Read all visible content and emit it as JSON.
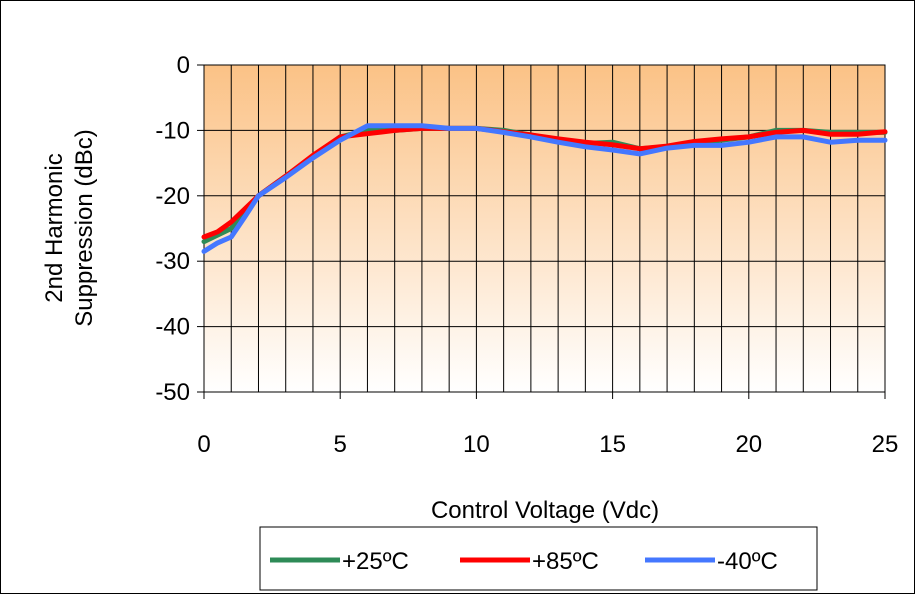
{
  "chart_data": {
    "type": "line",
    "title": "",
    "xlabel": "Control Voltage (Vdc)",
    "ylabel_line1": "2nd Harmonic",
    "ylabel_line2": "Suppression (dBc)",
    "xlim": [
      0,
      25
    ],
    "ylim": [
      -50,
      0
    ],
    "xticks": [
      0,
      5,
      10,
      15,
      20,
      25
    ],
    "yticks": [
      0,
      -10,
      -20,
      -30,
      -40,
      -50
    ],
    "xtick_labels": [
      "0",
      "5",
      "10",
      "15",
      "20",
      "25"
    ],
    "ytick_labels": [
      "0",
      "-10",
      "-20",
      "-30",
      "-40",
      "-50"
    ],
    "grid": "vertical lines every 1 unit, horizontal lines every 10 units",
    "legend_position": "bottom",
    "background": "orange-to-white vertical gradient",
    "series": [
      {
        "name": "+25ºC",
        "color": "#2e8b57",
        "points": [
          [
            0,
            -27
          ],
          [
            1,
            -25
          ],
          [
            2,
            -20
          ],
          [
            3,
            -17
          ],
          [
            4,
            -14
          ],
          [
            5,
            -11
          ],
          [
            6,
            -10
          ],
          [
            7,
            -10
          ],
          [
            8,
            -9.7
          ],
          [
            9,
            -9.7
          ],
          [
            10,
            -9.7
          ],
          [
            11,
            -10
          ],
          [
            12,
            -10.7
          ],
          [
            13,
            -11.5
          ],
          [
            14,
            -12
          ],
          [
            15,
            -11.8
          ],
          [
            16,
            -12.8
          ],
          [
            17,
            -12.5
          ],
          [
            18,
            -11.8
          ],
          [
            19,
            -11.5
          ],
          [
            20,
            -11
          ],
          [
            21,
            -10
          ],
          [
            22,
            -10
          ],
          [
            23,
            -10.3
          ],
          [
            24,
            -10.3
          ],
          [
            25,
            -10.3
          ]
        ]
      },
      {
        "name": "+85ºC",
        "color": "#ff0000",
        "points": [
          [
            0,
            -26.3
          ],
          [
            0.5,
            -25.5
          ],
          [
            1,
            -24
          ],
          [
            2,
            -20
          ],
          [
            3,
            -17
          ],
          [
            4,
            -13.8
          ],
          [
            5,
            -11
          ],
          [
            6,
            -10.5
          ],
          [
            7,
            -10
          ],
          [
            8,
            -9.7
          ],
          [
            9,
            -9.7
          ],
          [
            10,
            -9.7
          ],
          [
            11,
            -10.2
          ],
          [
            12,
            -10.7
          ],
          [
            13,
            -11.3
          ],
          [
            14,
            -11.8
          ],
          [
            15,
            -12.2
          ],
          [
            16,
            -12.8
          ],
          [
            17,
            -12.4
          ],
          [
            18,
            -11.7
          ],
          [
            19,
            -11.3
          ],
          [
            20,
            -11
          ],
          [
            21,
            -10.3
          ],
          [
            22,
            -10
          ],
          [
            23,
            -10.6
          ],
          [
            24,
            -10.6
          ],
          [
            25,
            -10.2
          ]
        ]
      },
      {
        "name": "-40ºC",
        "color": "#4477ff",
        "points": [
          [
            0,
            -28.5
          ],
          [
            0.5,
            -27.2
          ],
          [
            1,
            -26.3
          ],
          [
            1.5,
            -23.2
          ],
          [
            2,
            -20
          ],
          [
            3,
            -17.2
          ],
          [
            4,
            -14.2
          ],
          [
            5,
            -11.5
          ],
          [
            6,
            -9.3
          ],
          [
            7,
            -9.3
          ],
          [
            8,
            -9.3
          ],
          [
            9,
            -9.7
          ],
          [
            10,
            -9.7
          ],
          [
            11,
            -10.3
          ],
          [
            12,
            -11
          ],
          [
            13,
            -11.8
          ],
          [
            14,
            -12.5
          ],
          [
            15,
            -13
          ],
          [
            16,
            -13.6
          ],
          [
            17,
            -12.7
          ],
          [
            18,
            -12.3
          ],
          [
            19,
            -12.3
          ],
          [
            20,
            -11.8
          ],
          [
            21,
            -11
          ],
          [
            22,
            -11
          ],
          [
            23,
            -11.8
          ],
          [
            24,
            -11.5
          ],
          [
            25,
            -11.5
          ]
        ]
      }
    ]
  }
}
